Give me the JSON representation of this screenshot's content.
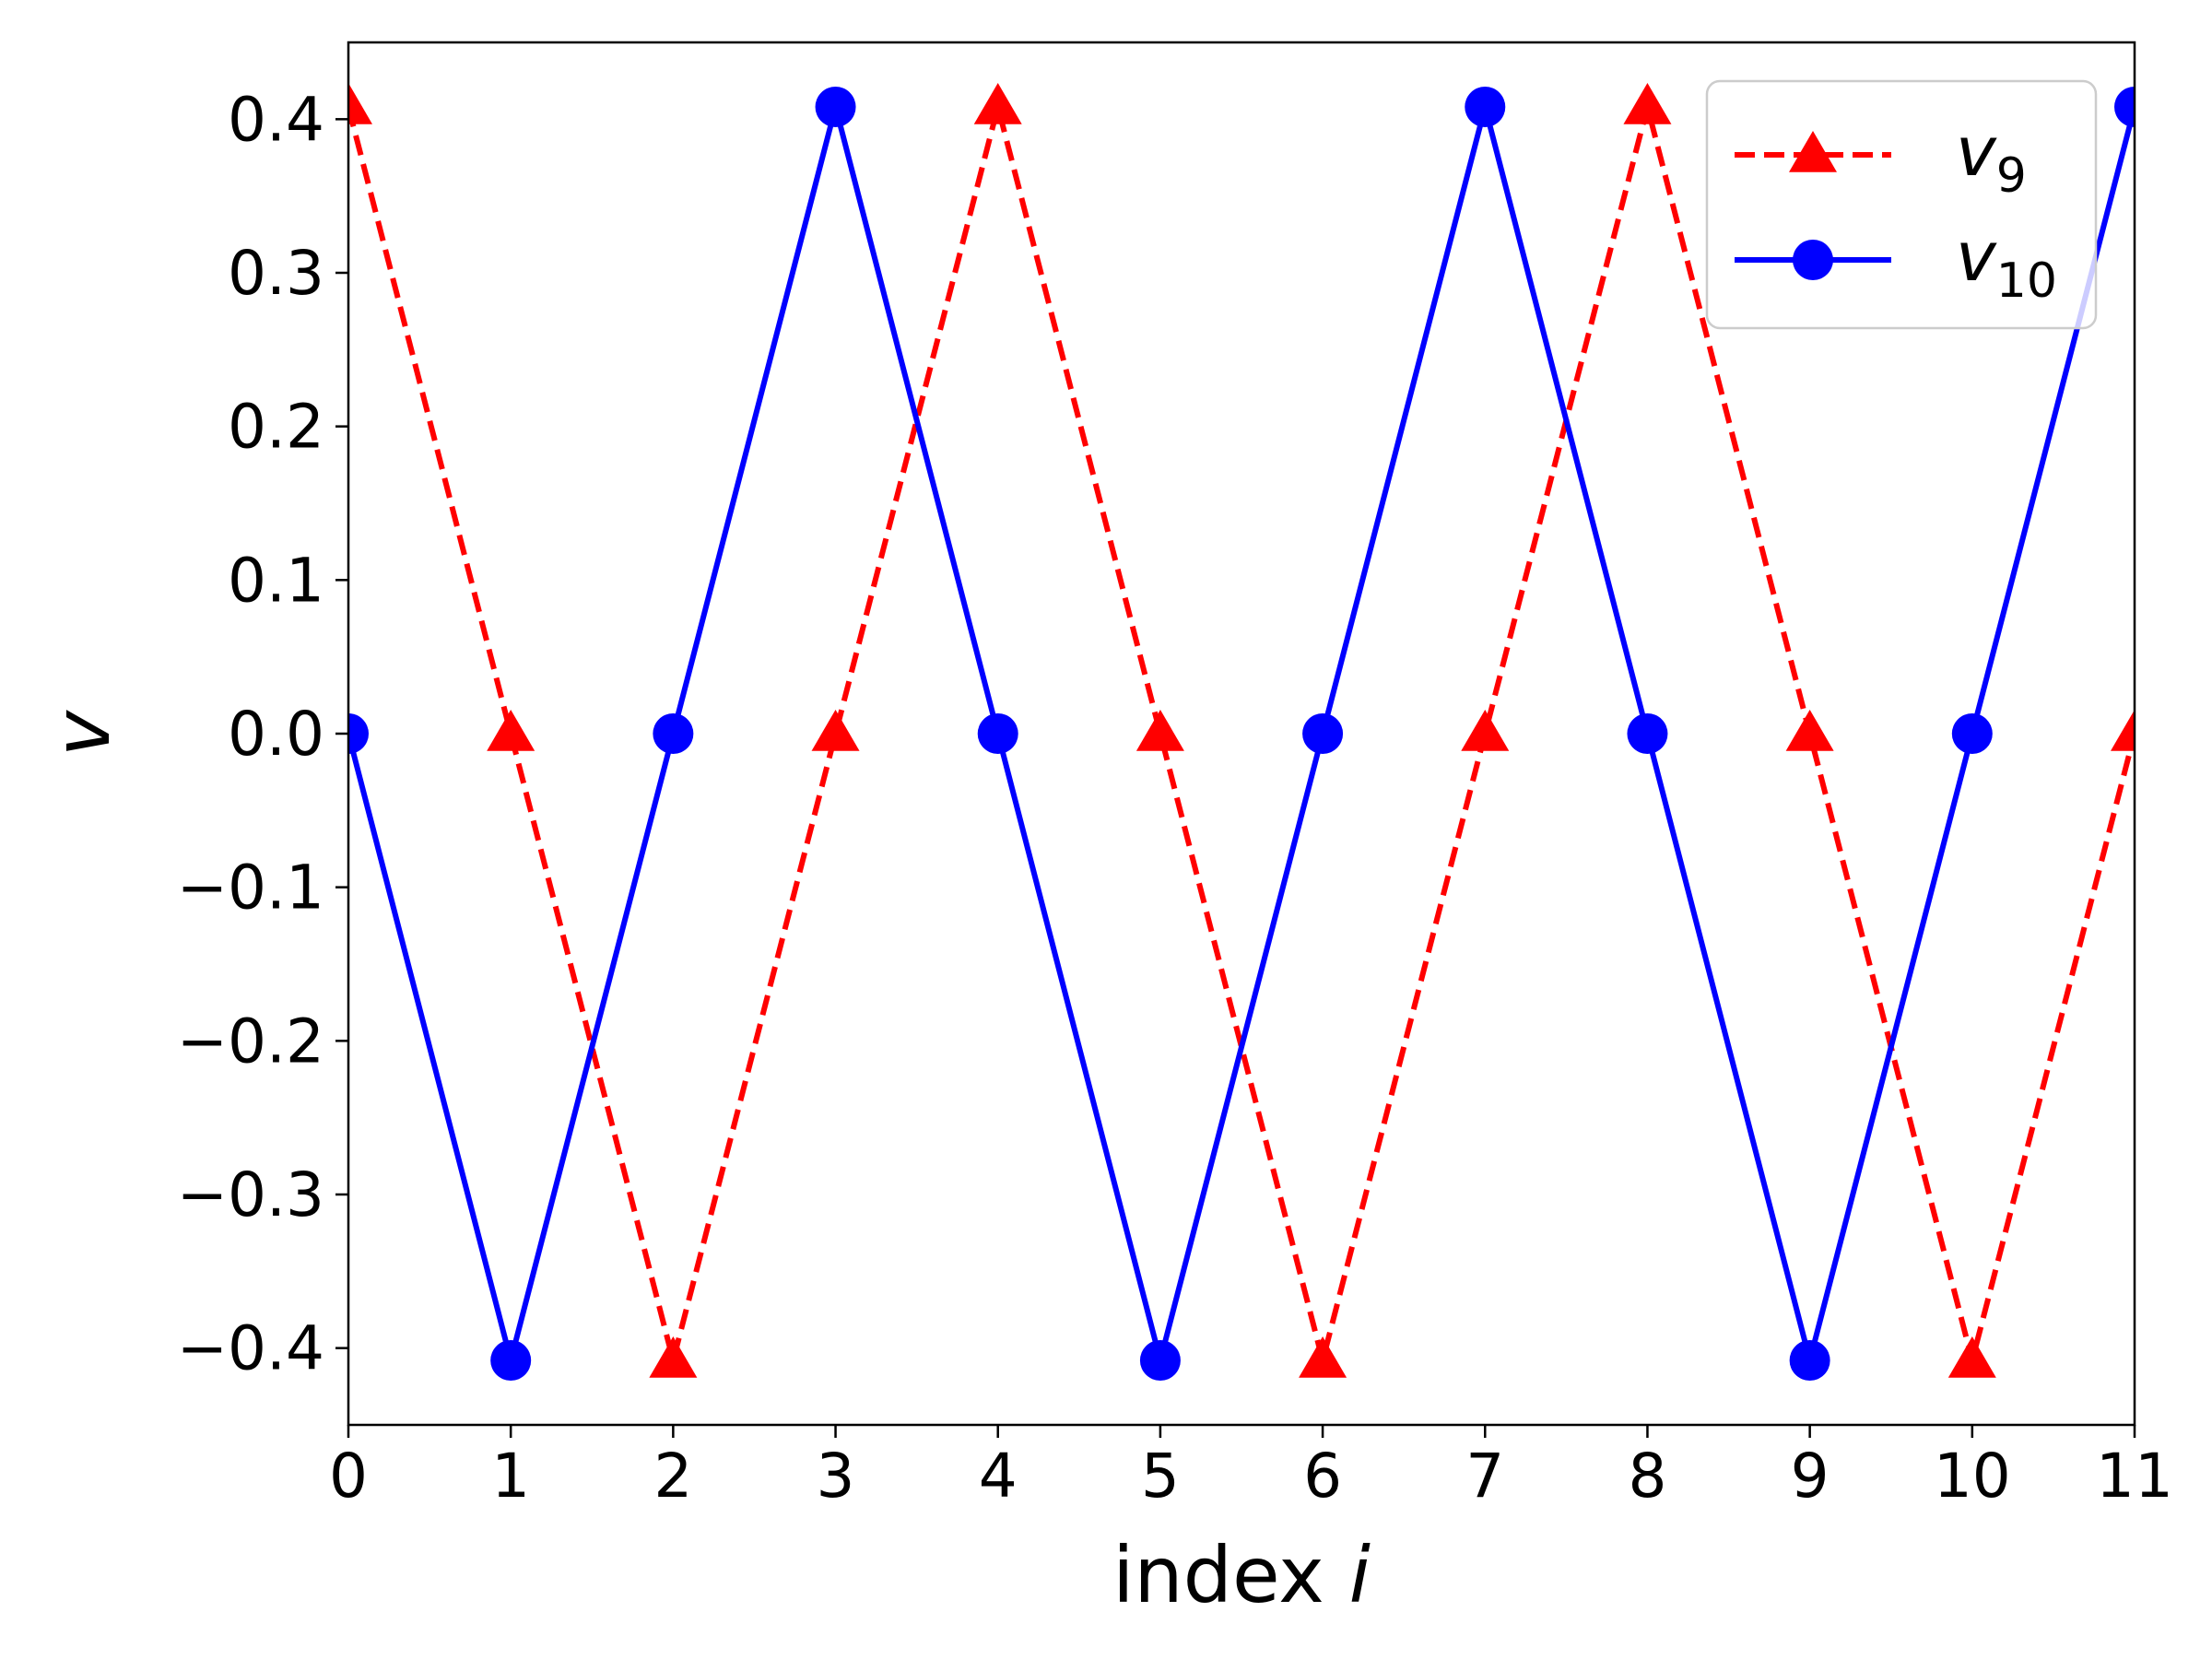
{
  "chart_data": {
    "type": "line",
    "x": [
      0,
      1,
      2,
      3,
      4,
      5,
      6,
      7,
      8,
      9,
      10,
      11
    ],
    "series": [
      {
        "name": "v_9",
        "name_base": "v",
        "name_sub": "9",
        "values": [
          0.408,
          0,
          -0.408,
          0,
          0.408,
          0,
          -0.408,
          0,
          0.408,
          0,
          -0.408,
          0
        ],
        "color": "#ff0000",
        "line_style": "dashed",
        "marker": "triangle"
      },
      {
        "name": "v_10",
        "name_base": "v",
        "name_sub": "10",
        "values": [
          0,
          -0.408,
          0,
          0.408,
          0,
          -0.408,
          0,
          0.408,
          0,
          -0.408,
          0,
          0.408
        ],
        "color": "#0000ff",
        "line_style": "solid",
        "marker": "circle"
      }
    ],
    "xlabel_text": "index ",
    "xlabel_var": "i",
    "ylabel": "v",
    "xlim": [
      0,
      11
    ],
    "ylim": [
      -0.45,
      0.45
    ],
    "xticks": [
      0,
      1,
      2,
      3,
      4,
      5,
      6,
      7,
      8,
      9,
      10,
      11
    ],
    "xtick_labels": [
      "0",
      "1",
      "2",
      "3",
      "4",
      "5",
      "6",
      "7",
      "8",
      "9",
      "10",
      "11"
    ],
    "yticks": [
      0.4,
      0.3,
      0.2,
      0.1,
      0.0,
      -0.1,
      -0.2,
      -0.3,
      -0.4
    ],
    "ytick_labels": [
      "0.4",
      "0.3",
      "0.2",
      "0.1",
      "0.0",
      "−0.1",
      "−0.2",
      "−0.3",
      "−0.4"
    ],
    "grid": false,
    "legend_position": "top-right"
  }
}
